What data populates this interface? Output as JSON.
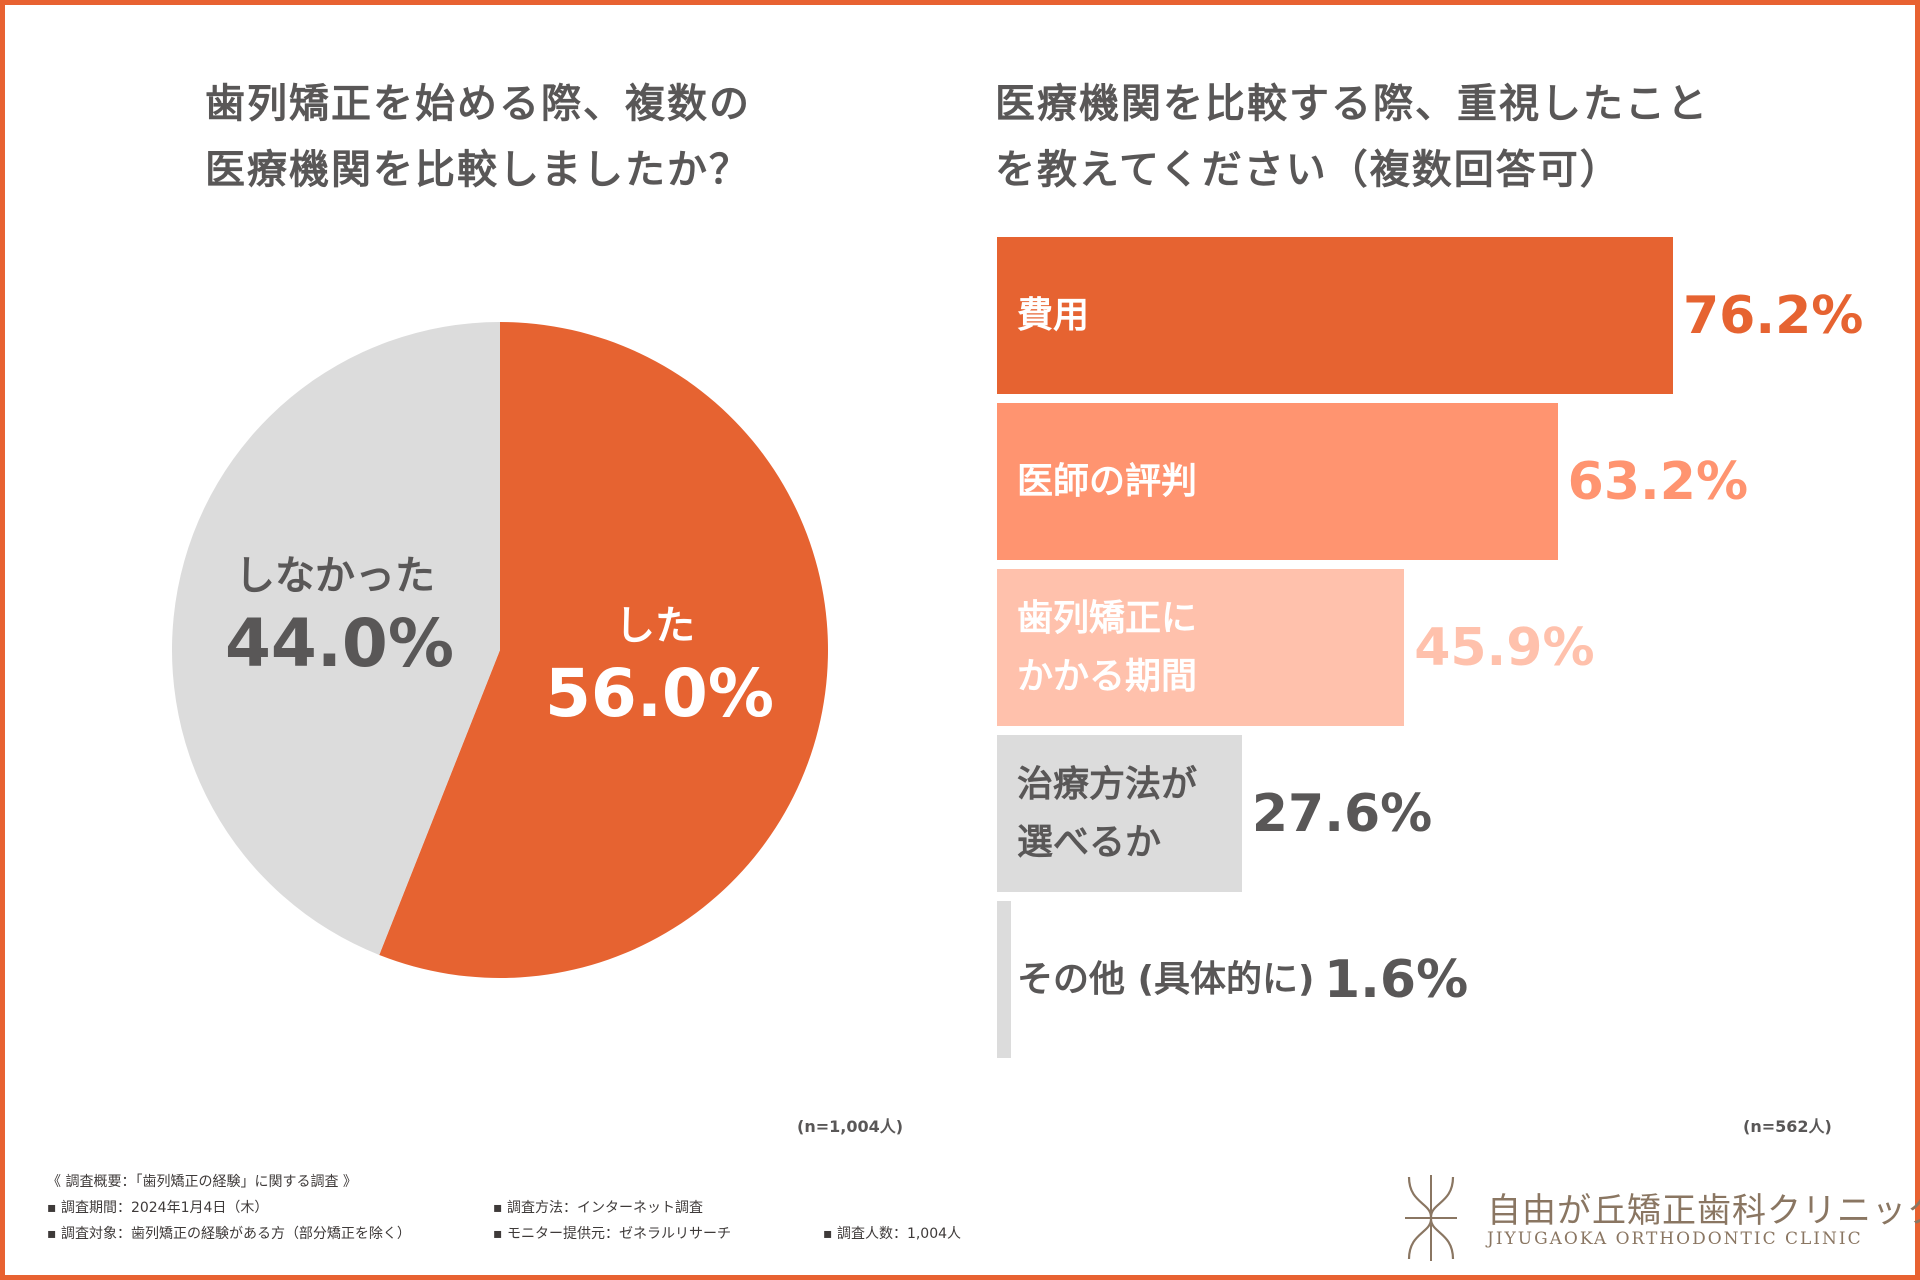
{
  "colors": {
    "border": "#e86231",
    "text": "#595757",
    "logo": "#8a7662"
  },
  "chart_data": [
    {
      "type": "pie",
      "title_lines": [
        "歯列矯正を始める際、複数の",
        "医療機関を比較しましたか？"
      ],
      "slices": [
        {
          "label": "した",
          "value": 56.0,
          "display": "56.0%",
          "color": "#e66331",
          "label_color": "#ffffff"
        },
        {
          "label": "しなかった",
          "value": 44.0,
          "display": "44.0%",
          "color": "#dcdcdc",
          "label_color": "#595757"
        }
      ],
      "sample_note": "(n=1,004人)"
    },
    {
      "type": "bar",
      "orientation": "horizontal",
      "title_lines": [
        "医療機関を比較する際、重視したこと",
        "を教えてください（複数回答可）"
      ],
      "categories": [
        {
          "label_lines": [
            "費用"
          ],
          "value": 76.2,
          "display": "76.2%",
          "bar_color": "#e66331",
          "label_color": "#ffffff",
          "value_color": "#e66331"
        },
        {
          "label_lines": [
            "医師の評判"
          ],
          "value": 63.2,
          "display": "63.2%",
          "bar_color": "#ff9470",
          "label_color": "#ffffff",
          "value_color": "#ff9470"
        },
        {
          "label_lines": [
            "歯列矯正に",
            "かかる期間"
          ],
          "value": 45.9,
          "display": "45.9%",
          "bar_color": "#ffc1ac",
          "label_color": "#ffffff",
          "value_color": "#ffc1ac"
        },
        {
          "label_lines": [
            "治療方法が",
            "選べるか"
          ],
          "value": 27.6,
          "display": "27.6%",
          "bar_color": "#dcdcdc",
          "label_color": "#595757",
          "value_color": "#595757"
        },
        {
          "label_lines": [
            "その他 (具体的に)"
          ],
          "value": 1.6,
          "display": "1.6%",
          "bar_color": "#dcdcdc",
          "label_color": "#595757",
          "value_color": "#595757"
        }
      ],
      "xlim": [
        0,
        100
      ],
      "sample_note": "(n=562人)"
    }
  ],
  "survey": {
    "heading": "《 調査概要：「歯列矯正の経験」に関する調査 》",
    "period": "▪ 調査期間：2024年1月4日（木）",
    "method": "▪ 調査方法：インターネット調査",
    "target": "▪ 調査対象：歯列矯正の経験がある方（部分矯正を除く）",
    "provider": "▪ モニター提供元：ゼネラルリサーチ",
    "count": "▪ 調査人数：1,004人"
  },
  "logo": {
    "name": "自由が丘矯正歯科クリニック",
    "sub": "JIYUGAOKA ORTHODONTIC CLINIC"
  }
}
